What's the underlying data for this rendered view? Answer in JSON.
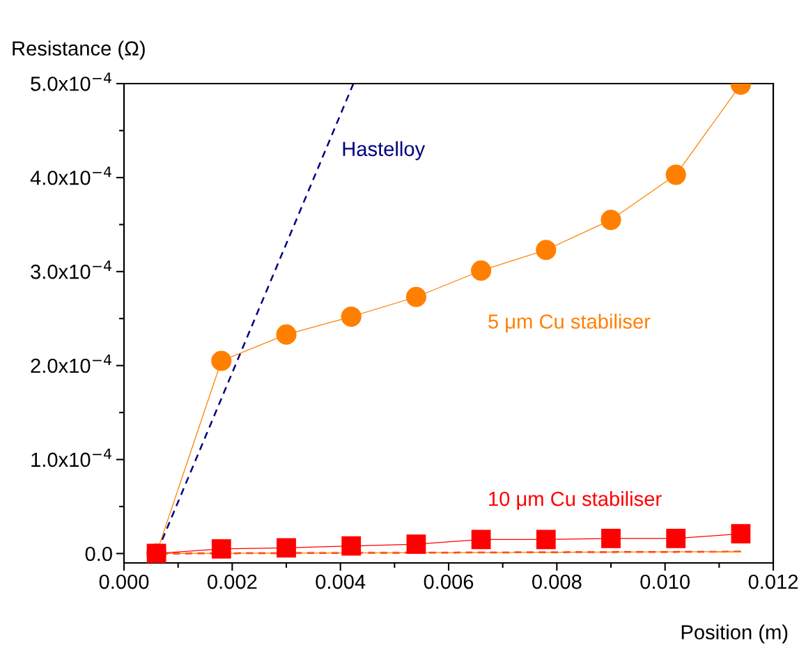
{
  "chart_data": {
    "type": "line",
    "xlabel": "Position (m)",
    "ylabel": "Resistance (Ω)",
    "xlim": [
      0.0,
      0.012
    ],
    "ylim": [
      -1e-05,
      0.0005
    ],
    "xticks": [
      {
        "value": 0.0,
        "label": "0.000"
      },
      {
        "value": 0.002,
        "label": "0.002"
      },
      {
        "value": 0.004,
        "label": "0.004"
      },
      {
        "value": 0.006,
        "label": "0.006"
      },
      {
        "value": 0.008,
        "label": "0.008"
      },
      {
        "value": 0.01,
        "label": "0.010"
      },
      {
        "value": 0.012,
        "label": "0.012"
      }
    ],
    "yticks": [
      {
        "value": 0.0,
        "label": "0.0"
      },
      {
        "value": 0.0001,
        "label": "1.0x10$^{−4}$"
      },
      {
        "value": 0.0002,
        "label": "2.0x10$^{−4}$"
      },
      {
        "value": 0.0003,
        "label": "3.0x10$^{−4}$"
      },
      {
        "value": 0.0004,
        "label": "4.0x10$^{−4}$"
      },
      {
        "value": 0.0005,
        "label": "5.0x10$^{−4}$"
      }
    ],
    "grid": false,
    "legend": false,
    "series": [
      {
        "name": "Hastelloy",
        "color": "#000080",
        "x": [
          0.0006,
          0.00424
        ],
        "values": [
          0.0,
          0.0005
        ],
        "line_style": "dashed",
        "marker": "none"
      },
      {
        "name": "5 μm Cu stabiliser",
        "color": "#ff8000",
        "x": [
          0.0006,
          0.0018,
          0.003,
          0.0042,
          0.0054,
          0.0066,
          0.0078,
          0.009,
          0.0102,
          0.0114
        ],
        "values": [
          0.0,
          0.000205,
          0.000233,
          0.000252,
          0.000273,
          0.000301,
          0.000323,
          0.000355,
          0.000403,
          0.000499
        ],
        "line_style": "solid",
        "marker": "circle"
      },
      {
        "name": "10 μm Cu stabiliser",
        "color": "#ff0000",
        "x": [
          0.0006,
          0.0018,
          0.003,
          0.0042,
          0.0054,
          0.0066,
          0.0078,
          0.009,
          0.0102,
          0.0114
        ],
        "values": [
          0.0,
          5e-06,
          6e-06,
          8e-06,
          1e-05,
          1.5e-05,
          1.5e-05,
          1.6e-05,
          1.6e-05,
          2.1e-05
        ],
        "line_style": "solid",
        "marker": "square"
      },
      {
        "color": "#ff0000",
        "x": [
          0.0006,
          0.0114
        ],
        "values": [
          0.0,
          2e-06
        ],
        "line_style": "dashed",
        "marker": "none"
      },
      {
        "color": "#ff8000",
        "x": [
          0.0006,
          0.0114
        ],
        "values": [
          0.0,
          2e-06
        ],
        "line_style": "solid",
        "marker": "none"
      }
    ]
  }
}
